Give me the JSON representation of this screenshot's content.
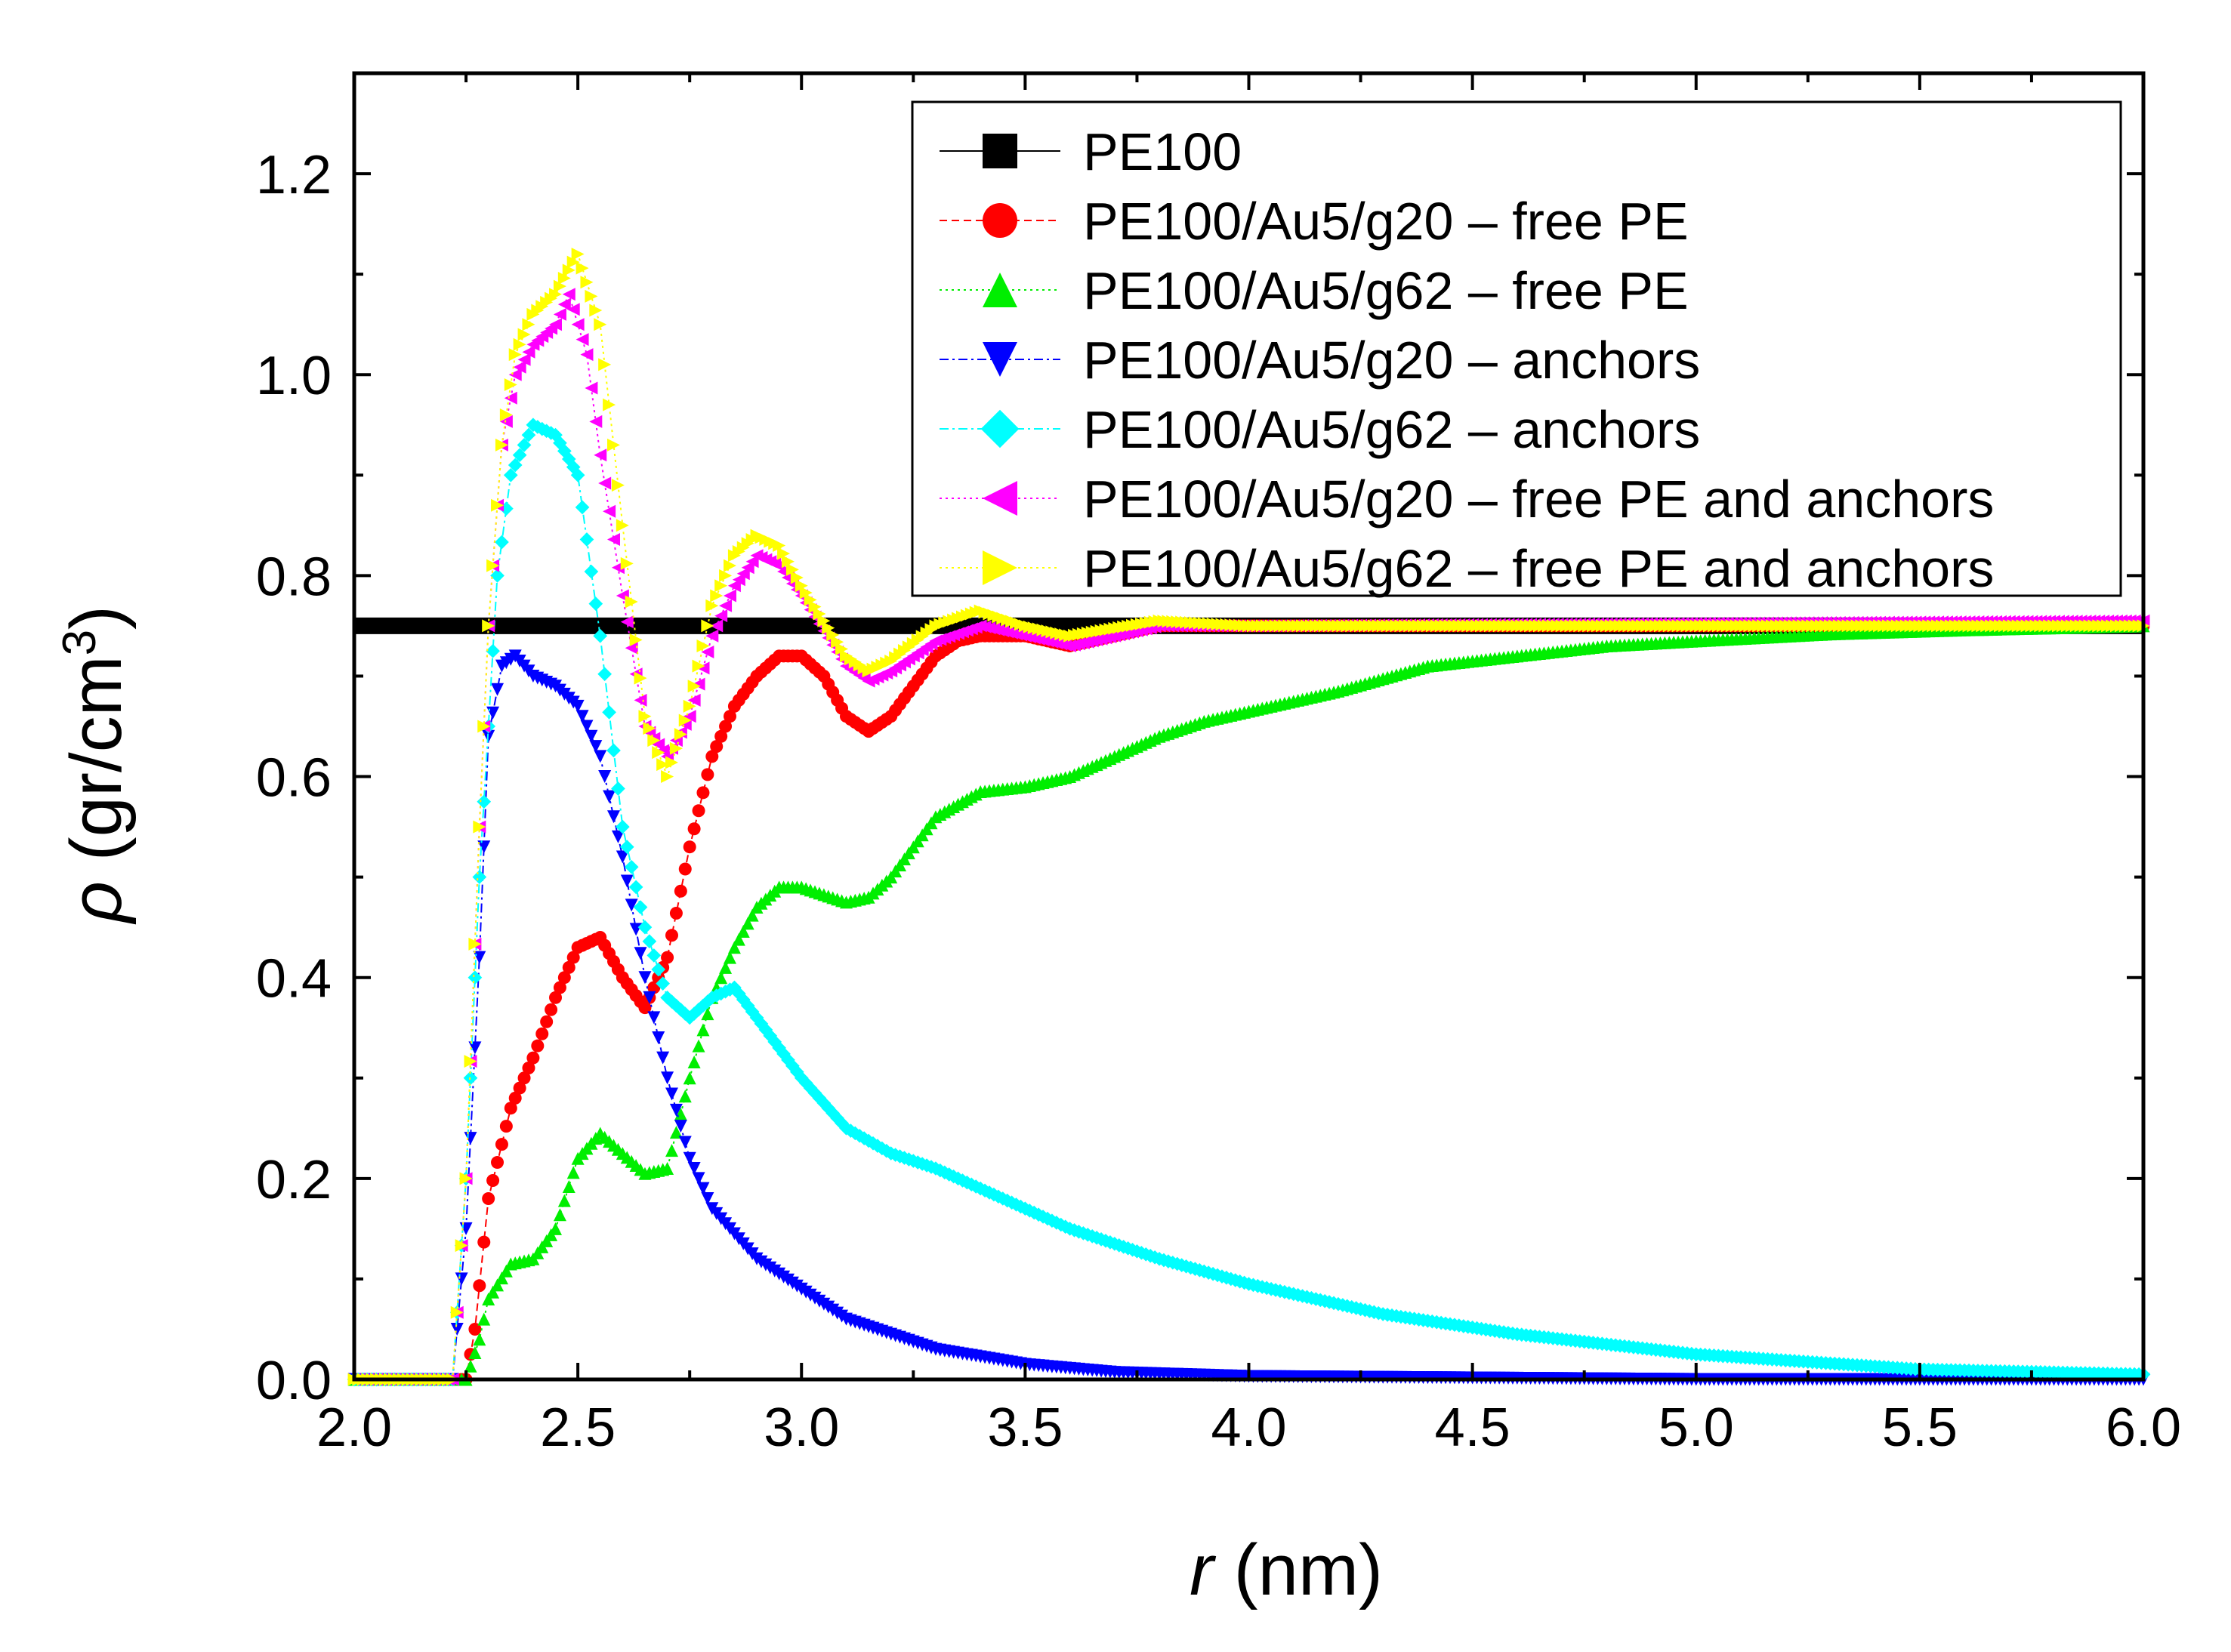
{
  "chart_data": {
    "type": "line",
    "title": "",
    "xlabel_var": "r",
    "xlabel_unit": " (nm)",
    "ylabel_var": "ρ",
    "ylabel_unit_base": " (gr/cm",
    "ylabel_unit_sup": "3",
    "ylabel_unit_close": ")",
    "xlim": [
      2.0,
      6.0
    ],
    "ylim": [
      0.0,
      1.3
    ],
    "xticks": [
      "2.0",
      "2.5",
      "3.0",
      "3.5",
      "4.0",
      "4.5",
      "5.0",
      "5.5",
      "6.0"
    ],
    "yticks": [
      "0.0",
      "0.2",
      "0.4",
      "0.6",
      "0.8",
      "1.0",
      "1.2"
    ],
    "legend_position": "top-right",
    "series": [
      {
        "name": "PE100",
        "color": "#000000",
        "marker": "square",
        "line": "solid",
        "points": [
          [
            2.0,
            0.75
          ],
          [
            6.0,
            0.75
          ]
        ]
      },
      {
        "name": "PE100/Au5/g20 – free PE",
        "color": "#ff0000",
        "marker": "circle",
        "line": "dash",
        "points": [
          [
            2.0,
            0.0
          ],
          [
            2.25,
            0.0
          ],
          [
            2.27,
            0.05
          ],
          [
            2.3,
            0.18
          ],
          [
            2.35,
            0.27
          ],
          [
            2.4,
            0.32
          ],
          [
            2.45,
            0.38
          ],
          [
            2.5,
            0.43
          ],
          [
            2.55,
            0.44
          ],
          [
            2.6,
            0.4
          ],
          [
            2.65,
            0.37
          ],
          [
            2.7,
            0.42
          ],
          [
            2.75,
            0.53
          ],
          [
            2.8,
            0.62
          ],
          [
            2.85,
            0.67
          ],
          [
            2.9,
            0.7
          ],
          [
            2.95,
            0.72
          ],
          [
            3.0,
            0.72
          ],
          [
            3.05,
            0.7
          ],
          [
            3.1,
            0.66
          ],
          [
            3.15,
            0.645
          ],
          [
            3.2,
            0.66
          ],
          [
            3.25,
            0.69
          ],
          [
            3.3,
            0.72
          ],
          [
            3.35,
            0.735
          ],
          [
            3.4,
            0.74
          ],
          [
            3.5,
            0.74
          ],
          [
            3.6,
            0.73
          ],
          [
            3.7,
            0.74
          ],
          [
            3.8,
            0.75
          ],
          [
            4.0,
            0.75
          ],
          [
            6.0,
            0.75
          ]
        ]
      },
      {
        "name": "PE100/Au5/g62 – free PE",
        "color": "#00ee00",
        "marker": "triangle-up",
        "line": "dot",
        "points": [
          [
            2.0,
            0.0
          ],
          [
            2.25,
            0.0
          ],
          [
            2.28,
            0.04
          ],
          [
            2.3,
            0.08
          ],
          [
            2.35,
            0.115
          ],
          [
            2.4,
            0.12
          ],
          [
            2.45,
            0.15
          ],
          [
            2.5,
            0.22
          ],
          [
            2.55,
            0.245
          ],
          [
            2.6,
            0.225
          ],
          [
            2.65,
            0.205
          ],
          [
            2.7,
            0.21
          ],
          [
            2.75,
            0.3
          ],
          [
            2.8,
            0.38
          ],
          [
            2.85,
            0.43
          ],
          [
            2.9,
            0.47
          ],
          [
            2.95,
            0.49
          ],
          [
            3.0,
            0.49
          ],
          [
            3.1,
            0.475
          ],
          [
            3.15,
            0.48
          ],
          [
            3.2,
            0.5
          ],
          [
            3.3,
            0.56
          ],
          [
            3.4,
            0.585
          ],
          [
            3.5,
            0.59
          ],
          [
            3.6,
            0.6
          ],
          [
            3.7,
            0.62
          ],
          [
            3.8,
            0.64
          ],
          [
            3.9,
            0.655
          ],
          [
            4.0,
            0.665
          ],
          [
            4.2,
            0.685
          ],
          [
            4.4,
            0.71
          ],
          [
            4.6,
            0.72
          ],
          [
            4.8,
            0.73
          ],
          [
            5.0,
            0.735
          ],
          [
            5.3,
            0.742
          ],
          [
            5.6,
            0.746
          ],
          [
            6.0,
            0.75
          ]
        ]
      },
      {
        "name": "PE100/Au5/g20 – anchors",
        "color": "#0000ff",
        "marker": "triangle-down",
        "line": "dashdot",
        "points": [
          [
            2.0,
            0.0
          ],
          [
            2.22,
            0.0
          ],
          [
            2.25,
            0.15
          ],
          [
            2.28,
            0.42
          ],
          [
            2.3,
            0.64
          ],
          [
            2.33,
            0.71
          ],
          [
            2.36,
            0.72
          ],
          [
            2.4,
            0.7
          ],
          [
            2.45,
            0.69
          ],
          [
            2.5,
            0.67
          ],
          [
            2.55,
            0.62
          ],
          [
            2.6,
            0.52
          ],
          [
            2.65,
            0.4
          ],
          [
            2.7,
            0.3
          ],
          [
            2.75,
            0.22
          ],
          [
            2.8,
            0.17
          ],
          [
            2.9,
            0.12
          ],
          [
            3.0,
            0.09
          ],
          [
            3.1,
            0.06
          ],
          [
            3.2,
            0.045
          ],
          [
            3.3,
            0.03
          ],
          [
            3.5,
            0.015
          ],
          [
            3.7,
            0.007
          ],
          [
            4.0,
            0.003
          ],
          [
            5.0,
            0.0
          ],
          [
            6.0,
            0.0
          ]
        ]
      },
      {
        "name": "PE100/Au5/g62 – anchors",
        "color": "#00ffff",
        "marker": "diamond",
        "line": "dashdot",
        "points": [
          [
            2.0,
            0.0
          ],
          [
            2.22,
            0.0
          ],
          [
            2.25,
            0.2
          ],
          [
            2.28,
            0.5
          ],
          [
            2.3,
            0.65
          ],
          [
            2.32,
            0.8
          ],
          [
            2.35,
            0.9
          ],
          [
            2.4,
            0.95
          ],
          [
            2.45,
            0.94
          ],
          [
            2.5,
            0.9
          ],
          [
            2.55,
            0.74
          ],
          [
            2.6,
            0.55
          ],
          [
            2.65,
            0.45
          ],
          [
            2.7,
            0.38
          ],
          [
            2.75,
            0.36
          ],
          [
            2.8,
            0.38
          ],
          [
            2.85,
            0.39
          ],
          [
            2.9,
            0.36
          ],
          [
            3.0,
            0.3
          ],
          [
            3.1,
            0.25
          ],
          [
            3.2,
            0.225
          ],
          [
            3.3,
            0.21
          ],
          [
            3.4,
            0.19
          ],
          [
            3.6,
            0.15
          ],
          [
            3.8,
            0.12
          ],
          [
            4.0,
            0.095
          ],
          [
            4.3,
            0.065
          ],
          [
            4.6,
            0.045
          ],
          [
            5.0,
            0.025
          ],
          [
            5.5,
            0.01
          ],
          [
            6.0,
            0.005
          ]
        ]
      },
      {
        "name": "PE100/Au5/g20 – free PE and anchors",
        "color": "#ff00ff",
        "marker": "triangle-left",
        "line": "dot",
        "points": [
          [
            2.0,
            0.0
          ],
          [
            2.22,
            0.0
          ],
          [
            2.25,
            0.2
          ],
          [
            2.28,
            0.55
          ],
          [
            2.3,
            0.75
          ],
          [
            2.33,
            0.93
          ],
          [
            2.36,
            1.0
          ],
          [
            2.4,
            1.03
          ],
          [
            2.45,
            1.05
          ],
          [
            2.48,
            1.08
          ],
          [
            2.52,
            1.02
          ],
          [
            2.55,
            0.92
          ],
          [
            2.6,
            0.78
          ],
          [
            2.65,
            0.65
          ],
          [
            2.7,
            0.62
          ],
          [
            2.75,
            0.66
          ],
          [
            2.8,
            0.74
          ],
          [
            2.85,
            0.79
          ],
          [
            2.9,
            0.82
          ],
          [
            2.95,
            0.81
          ],
          [
            3.0,
            0.78
          ],
          [
            3.1,
            0.71
          ],
          [
            3.15,
            0.695
          ],
          [
            3.2,
            0.705
          ],
          [
            3.3,
            0.735
          ],
          [
            3.4,
            0.75
          ],
          [
            3.5,
            0.74
          ],
          [
            3.6,
            0.73
          ],
          [
            3.8,
            0.75
          ],
          [
            4.0,
            0.75
          ],
          [
            6.0,
            0.755
          ]
        ]
      },
      {
        "name": "PE100/Au5/g62 – free PE and anchors",
        "color": "#ffff00",
        "marker": "triangle-right",
        "line": "dot",
        "points": [
          [
            2.0,
            0.0
          ],
          [
            2.22,
            0.0
          ],
          [
            2.25,
            0.2
          ],
          [
            2.28,
            0.55
          ],
          [
            2.3,
            0.75
          ],
          [
            2.33,
            0.93
          ],
          [
            2.36,
            1.02
          ],
          [
            2.4,
            1.06
          ],
          [
            2.45,
            1.08
          ],
          [
            2.5,
            1.12
          ],
          [
            2.55,
            1.05
          ],
          [
            2.6,
            0.85
          ],
          [
            2.65,
            0.66
          ],
          [
            2.7,
            0.6
          ],
          [
            2.75,
            0.67
          ],
          [
            2.8,
            0.77
          ],
          [
            2.85,
            0.82
          ],
          [
            2.9,
            0.84
          ],
          [
            2.95,
            0.83
          ],
          [
            3.0,
            0.79
          ],
          [
            3.1,
            0.72
          ],
          [
            3.15,
            0.705
          ],
          [
            3.2,
            0.715
          ],
          [
            3.3,
            0.75
          ],
          [
            3.4,
            0.765
          ],
          [
            3.5,
            0.75
          ],
          [
            3.6,
            0.74
          ],
          [
            3.8,
            0.755
          ],
          [
            4.0,
            0.75
          ],
          [
            6.0,
            0.75
          ]
        ]
      }
    ]
  }
}
